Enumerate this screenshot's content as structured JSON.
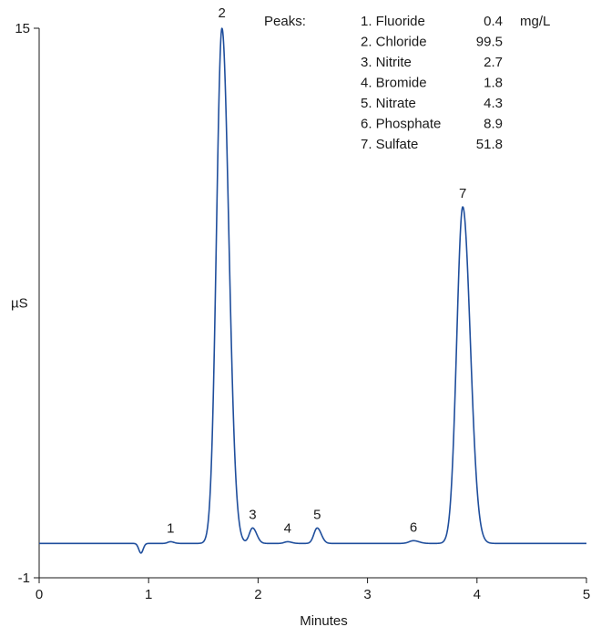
{
  "chart_data": {
    "type": "line",
    "title": "",
    "xlabel": "Minutes",
    "ylabel": "µS",
    "xlim": [
      0,
      5
    ],
    "ylim": [
      -1,
      15
    ],
    "x_ticks": [
      "0",
      "1",
      "2",
      "3",
      "4",
      "5"
    ],
    "y_ticks": [
      "15",
      "-1"
    ],
    "grid": false,
    "series": [
      {
        "color": "#1f4e9c",
        "baseline": 0.0,
        "peaks": [
          {
            "label": "1",
            "time": 1.2,
            "height": 0.05,
            "width": 0.025
          },
          {
            "label": "2",
            "time": 1.67,
            "height": 15.0,
            "width": 0.05,
            "clipped": true
          },
          {
            "label": "3",
            "time": 1.95,
            "height": 0.45,
            "width": 0.03
          },
          {
            "label": "4",
            "time": 2.27,
            "height": 0.05,
            "width": 0.03
          },
          {
            "label": "5",
            "time": 2.54,
            "height": 0.45,
            "width": 0.03
          },
          {
            "label": "6",
            "time": 3.42,
            "height": 0.08,
            "width": 0.04
          },
          {
            "label": "7",
            "time": 3.87,
            "height": 9.8,
            "width": 0.055
          }
        ],
        "system_dip": {
          "time": 0.93,
          "depth": -0.28,
          "width": 0.02
        }
      }
    ],
    "legend": {
      "heading": "Peaks:",
      "unit": "mg/L",
      "placement": "top-right",
      "entries": [
        {
          "name": "1. Fluoride",
          "value": "0.4"
        },
        {
          "name": "2. Chloride",
          "value": "99.5"
        },
        {
          "name": "3. Nitrite",
          "value": "2.7"
        },
        {
          "name": "4. Bromide",
          "value": "1.8"
        },
        {
          "name": "5. Nitrate",
          "value": "4.3"
        },
        {
          "name": "6. Phosphate",
          "value": "8.9"
        },
        {
          "name": "7. Sulfate",
          "value": "51.8"
        }
      ]
    }
  }
}
